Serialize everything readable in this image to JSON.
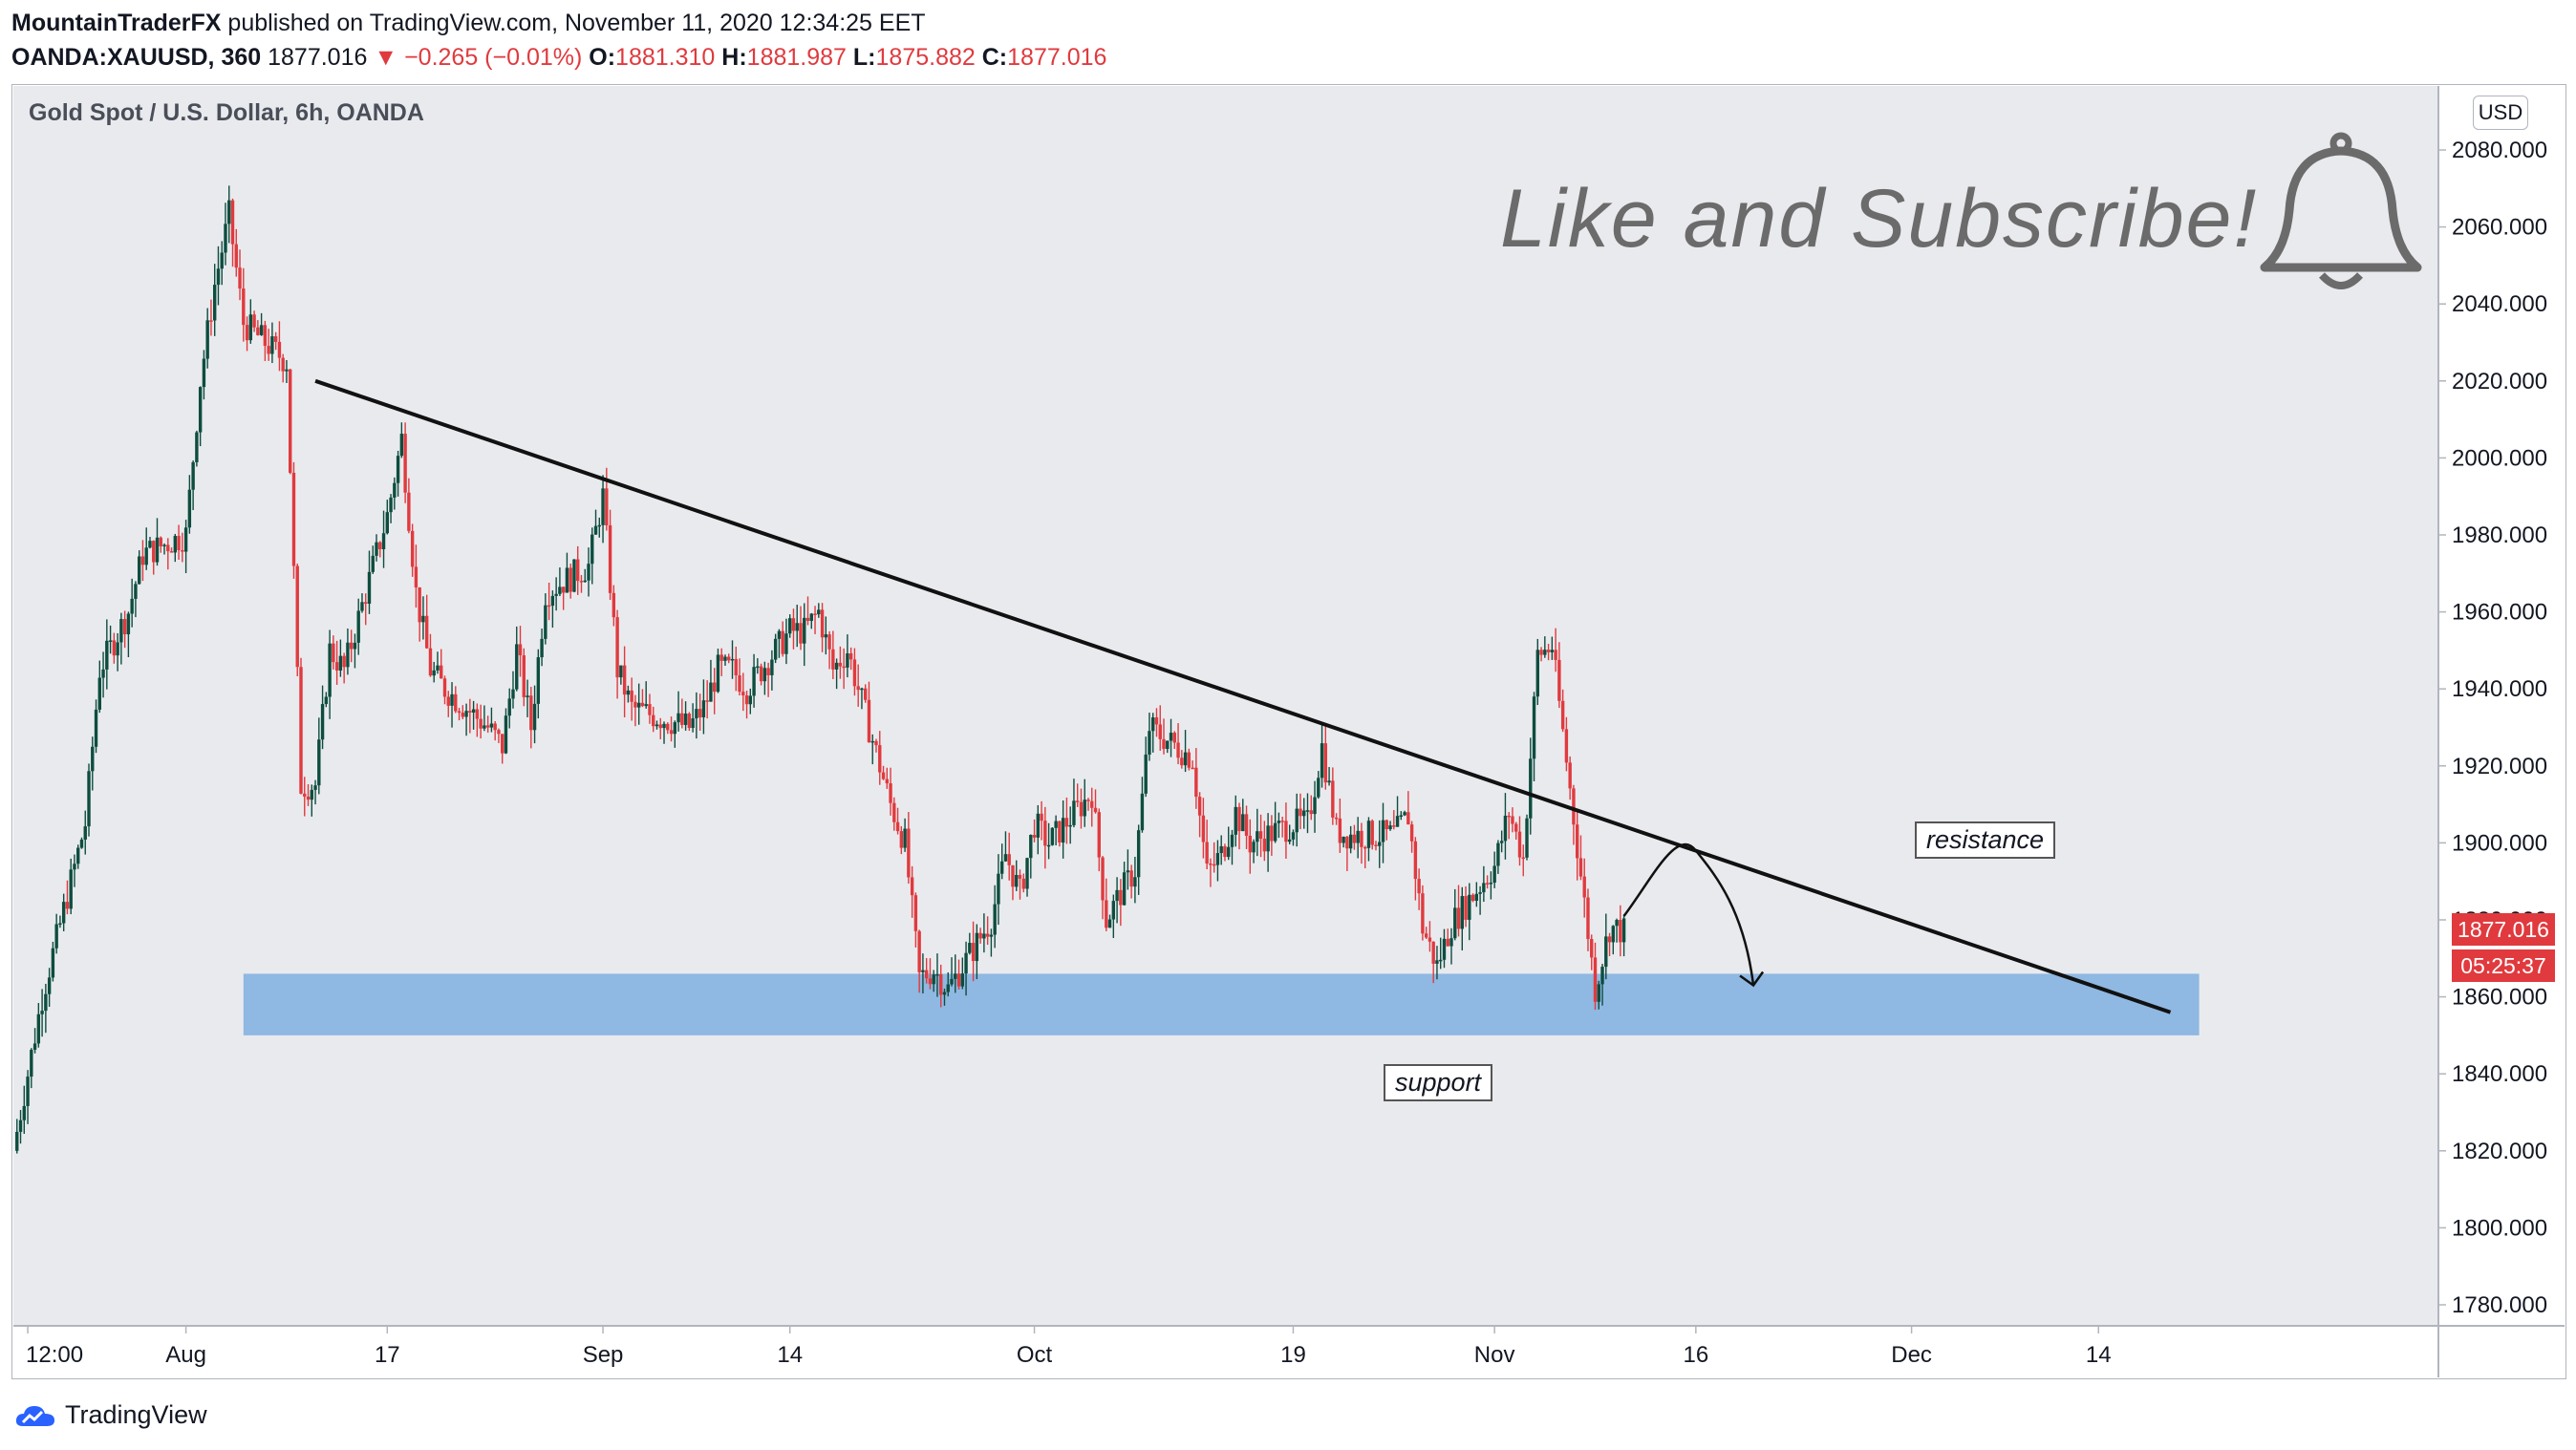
{
  "header": {
    "author": "MountainTraderFX",
    "published_text": "published on TradingView.com, November 11, 2020 12:34:25 EET",
    "symbol": "OANDA:XAUUSD, 360",
    "last": "1877.016",
    "change": "−0.265 (−0.01%)",
    "open_label": "O:",
    "open": "1881.310",
    "high_label": "H:",
    "high": "1881.987",
    "low_label": "L:",
    "low": "1875.882",
    "close_label": "C:",
    "close": "1877.016"
  },
  "chart_title": "Gold Spot / U.S. Dollar, 6h, OANDA",
  "cta_text": "Like and Subscribe!",
  "currency_button": "USD",
  "last_price_tag": "1877.016",
  "countdown_tag": "05:25:37",
  "footer_brand": "TradingView",
  "annotations": {
    "resistance": "resistance",
    "support": "support"
  },
  "colors": {
    "up": "#0d4d3f",
    "down": "#e03a3e",
    "support_zone": "#8fb8e2",
    "background": "#e9eaee"
  },
  "chart_data": {
    "type": "candlestick",
    "title": "Gold Spot / U.S. Dollar, 6h, OANDA",
    "ylim": [
      1770,
      2090
    ],
    "y_ticks": [
      "2080.000",
      "2060.000",
      "2040.000",
      "2020.000",
      "2000.000",
      "1980.000",
      "1960.000",
      "1940.000",
      "1920.000",
      "1900.000",
      "1880.000",
      "1860.000",
      "1840.000",
      "1820.000",
      "1800.000",
      "1780.000"
    ],
    "y_tick_values": [
      2080,
      2060,
      2040,
      2020,
      2000,
      1980,
      1960,
      1940,
      1920,
      1900,
      1880,
      1860,
      1840,
      1820,
      1800,
      1780
    ],
    "x_tick_labels": [
      "12:00",
      "Aug",
      "17",
      "Sep",
      "14",
      "Oct",
      "19",
      "Nov",
      "16",
      "Dec",
      "14"
    ],
    "x_tick_dates": [
      "2020-07-23",
      "2020-08-03",
      "2020-08-17",
      "2020-09-01",
      "2020-09-14",
      "2020-10-01",
      "2020-10-19",
      "2020-11-02",
      "2020-11-16",
      "2020-12-01",
      "2020-12-14"
    ],
    "x_range": [
      "2020-07-22",
      "2020-12-25"
    ],
    "close_series": [
      {
        "date": "2020-07-22",
        "close": 1820
      },
      {
        "date": "2020-07-24",
        "close": 1860
      },
      {
        "date": "2020-07-27",
        "close": 1905
      },
      {
        "date": "2020-07-28",
        "close": 1945
      },
      {
        "date": "2020-07-30",
        "close": 1960
      },
      {
        "date": "2020-07-31",
        "close": 1975
      },
      {
        "date": "2020-08-03",
        "close": 1980
      },
      {
        "date": "2020-08-04",
        "close": 2020
      },
      {
        "date": "2020-08-05",
        "close": 2045
      },
      {
        "date": "2020-08-06",
        "close": 2063
      },
      {
        "date": "2020-08-07",
        "close": 2035
      },
      {
        "date": "2020-08-10",
        "close": 2025
      },
      {
        "date": "2020-08-11",
        "close": 1915
      },
      {
        "date": "2020-08-12",
        "close": 1915
      },
      {
        "date": "2020-08-13",
        "close": 1950
      },
      {
        "date": "2020-08-14",
        "close": 1945
      },
      {
        "date": "2020-08-17",
        "close": 1985
      },
      {
        "date": "2020-08-18",
        "close": 2005
      },
      {
        "date": "2020-08-19",
        "close": 1965
      },
      {
        "date": "2020-08-20",
        "close": 1945
      },
      {
        "date": "2020-08-21",
        "close": 1940
      },
      {
        "date": "2020-08-24",
        "close": 1930
      },
      {
        "date": "2020-08-25",
        "close": 1925
      },
      {
        "date": "2020-08-26",
        "close": 1950
      },
      {
        "date": "2020-08-27",
        "close": 1930
      },
      {
        "date": "2020-08-28",
        "close": 1965
      },
      {
        "date": "2020-08-31",
        "close": 1972
      },
      {
        "date": "2020-09-01",
        "close": 1990
      },
      {
        "date": "2020-09-02",
        "close": 1945
      },
      {
        "date": "2020-09-03",
        "close": 1935
      },
      {
        "date": "2020-09-07",
        "close": 1930
      },
      {
        "date": "2020-09-08",
        "close": 1935
      },
      {
        "date": "2020-09-09",
        "close": 1945
      },
      {
        "date": "2020-09-10",
        "close": 1945
      },
      {
        "date": "2020-09-11",
        "close": 1940
      },
      {
        "date": "2020-09-14",
        "close": 1955
      },
      {
        "date": "2020-09-15",
        "close": 1955
      },
      {
        "date": "2020-09-16",
        "close": 1960
      },
      {
        "date": "2020-09-17",
        "close": 1945
      },
      {
        "date": "2020-09-18",
        "close": 1950
      },
      {
        "date": "2020-09-21",
        "close": 1910
      },
      {
        "date": "2020-09-22",
        "close": 1900
      },
      {
        "date": "2020-09-23",
        "close": 1865
      },
      {
        "date": "2020-09-24",
        "close": 1867
      },
      {
        "date": "2020-09-25",
        "close": 1862
      },
      {
        "date": "2020-09-28",
        "close": 1880
      },
      {
        "date": "2020-09-29",
        "close": 1897
      },
      {
        "date": "2020-09-30",
        "close": 1887
      },
      {
        "date": "2020-10-01",
        "close": 1905
      },
      {
        "date": "2020-10-02",
        "close": 1900
      },
      {
        "date": "2020-10-05",
        "close": 1913
      },
      {
        "date": "2020-10-06",
        "close": 1880
      },
      {
        "date": "2020-10-07",
        "close": 1887
      },
      {
        "date": "2020-10-08",
        "close": 1893
      },
      {
        "date": "2020-10-09",
        "close": 1930
      },
      {
        "date": "2020-10-12",
        "close": 1922
      },
      {
        "date": "2020-10-13",
        "close": 1892
      },
      {
        "date": "2020-10-14",
        "close": 1897
      },
      {
        "date": "2020-10-15",
        "close": 1908
      },
      {
        "date": "2020-10-16",
        "close": 1900
      },
      {
        "date": "2020-10-19",
        "close": 1905
      },
      {
        "date": "2020-10-20",
        "close": 1905
      },
      {
        "date": "2020-10-21",
        "close": 1925
      },
      {
        "date": "2020-10-22",
        "close": 1903
      },
      {
        "date": "2020-10-23",
        "close": 1902
      },
      {
        "date": "2020-10-26",
        "close": 1902
      },
      {
        "date": "2020-10-27",
        "close": 1907
      },
      {
        "date": "2020-10-28",
        "close": 1878
      },
      {
        "date": "2020-10-29",
        "close": 1868
      },
      {
        "date": "2020-10-30",
        "close": 1879
      },
      {
        "date": "2020-11-02",
        "close": 1894
      },
      {
        "date": "2020-11-03",
        "close": 1908
      },
      {
        "date": "2020-11-04",
        "close": 1896
      },
      {
        "date": "2020-11-05",
        "close": 1949
      },
      {
        "date": "2020-11-06",
        "close": 1951
      },
      {
        "date": "2020-11-09",
        "close": 1862
      },
      {
        "date": "2020-11-10",
        "close": 1878
      },
      {
        "date": "2020-11-11",
        "close": 1877
      }
    ],
    "trendline": {
      "start": {
        "date": "2020-08-12",
        "price": 2020
      },
      "end": {
        "date": "2020-12-19",
        "price": 1856
      }
    },
    "support_zone": {
      "from_date": "2020-08-07",
      "to_date": "2020-12-21",
      "low": 1850,
      "high": 1866
    },
    "projection": [
      {
        "date": "2020-11-11",
        "price": 1881
      },
      {
        "date": "2020-11-16",
        "price": 1898
      },
      {
        "date": "2020-11-20",
        "price": 1863
      }
    ]
  }
}
